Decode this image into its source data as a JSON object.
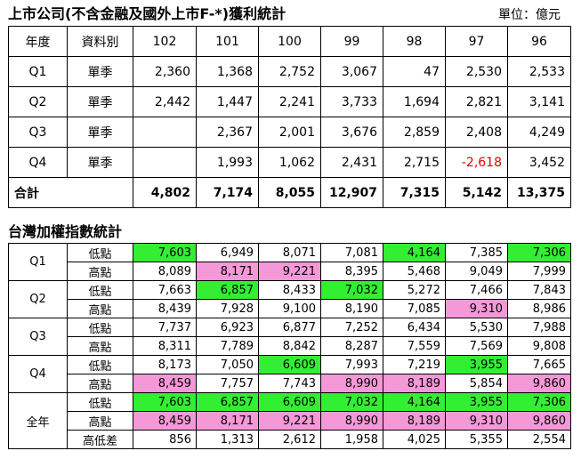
{
  "title1": "上市公司(不含金融及國外上市F-*)獲利統計",
  "unit_label": "單位：億元",
  "table1": {
    "headers": [
      "年度",
      "資料別",
      "102",
      "101",
      "100",
      "99",
      "98",
      "97",
      "96"
    ],
    "rows": [
      {
        "q": "Q1",
        "type": "單季",
        "values": [
          "2,360",
          "1,368",
          "2,752",
          "3,067",
          "47",
          "2,530",
          "2,533"
        ]
      },
      {
        "q": "Q2",
        "type": "單季",
        "values": [
          "2,442",
          "1,447",
          "2,241",
          "3,733",
          "1,694",
          "2,821",
          "3,141"
        ]
      },
      {
        "q": "Q3",
        "type": "單季",
        "values": [
          "",
          "2,367",
          "2,001",
          "3,676",
          "2,859",
          "2,408",
          "4,249"
        ]
      },
      {
        "q": "Q4",
        "type": "單季",
        "values": [
          "",
          "1,993",
          "1,062",
          "2,431",
          "2,715",
          "-2,618",
          "3,452"
        ]
      }
    ],
    "total": {
      "label": "合計",
      "values": [
        "4,802",
        "7,174",
        "8,055",
        "12,907",
        "7,315",
        "5,142",
        "13,375"
      ]
    }
  },
  "title2": "台灣加權指數統計",
  "table2": {
    "low_label": "低點",
    "high_label": "高點",
    "groups": [
      {
        "label": "Q1",
        "low": [
          "7,603",
          "6,949",
          "8,071",
          "7,081",
          "4,164",
          "7,385",
          "7,306"
        ],
        "high": [
          "8,089",
          "8,171",
          "9,221",
          "8,395",
          "5,468",
          "9,049",
          "7,999"
        ]
      },
      {
        "label": "Q2",
        "low": [
          "7,663",
          "6,857",
          "8,433",
          "7,032",
          "5,272",
          "7,466",
          "7,843"
        ],
        "high": [
          "8,439",
          "7,928",
          "9,100",
          "8,190",
          "7,085",
          "9,310",
          "8,986"
        ]
      },
      {
        "label": "Q3",
        "low": [
          "7,737",
          "6,923",
          "6,877",
          "7,252",
          "6,434",
          "5,530",
          "7,988"
        ],
        "high": [
          "8,311",
          "7,789",
          "8,842",
          "8,287",
          "7,559",
          "7,569",
          "9,808"
        ]
      },
      {
        "label": "Q4",
        "low": [
          "8,173",
          "7,050",
          "6,609",
          "7,993",
          "7,219",
          "3,955",
          "7,665"
        ],
        "high": [
          "8,459",
          "7,757",
          "7,743",
          "8,990",
          "8,189",
          "5,854",
          "9,860"
        ]
      },
      {
        "label": "全年",
        "low": [
          "7,603",
          "6,857",
          "6,609",
          "7,032",
          "4,164",
          "3,955",
          "7,306"
        ],
        "high": [
          "8,459",
          "8,171",
          "9,221",
          "8,990",
          "8,189",
          "9,310",
          "9,860"
        ]
      }
    ],
    "diff": {
      "label": "高低差",
      "values": [
        "856",
        "1,313",
        "2,612",
        "1,958",
        "4,025",
        "5,355",
        "2,554"
      ]
    }
  },
  "colors": {
    "green_highlight": "#33ee33",
    "pink_highlight": "#f598d8",
    "negative_text": "#e00000"
  }
}
